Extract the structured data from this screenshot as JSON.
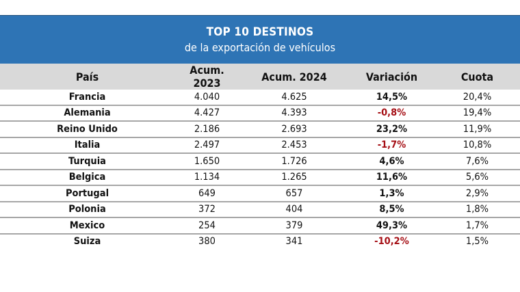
{
  "title": "TOP 10 DESTINOS",
  "subtitle": "de la exportación de vehículos",
  "colors": {
    "header_bg": "#2e74b5",
    "column_header_bg": "#d9d9d9",
    "negative": "#a50f15"
  },
  "chart_data": {
    "type": "table",
    "title": "TOP 10 DESTINOS",
    "subtitle": "de la exportación de vehículos",
    "columns": [
      "País",
      "Acum. 2023",
      "Acum. 2024",
      "Variación",
      "Cuota"
    ],
    "rows": [
      [
        "Francia",
        "4.040",
        "4.625",
        "14,5%",
        "20,4%"
      ],
      [
        "Alemania",
        "4.427",
        "4.393",
        "-0,8%",
        "19,4%"
      ],
      [
        "Reino Unido",
        "2.186",
        "2.693",
        "23,2%",
        "11,9%"
      ],
      [
        "Italia",
        "2.497",
        "2.453",
        "-1,7%",
        "10,8%"
      ],
      [
        "Turquia",
        "1.650",
        "1.726",
        "4,6%",
        "7,6%"
      ],
      [
        "Belgica",
        "1.134",
        "1.265",
        "11,6%",
        "5,6%"
      ],
      [
        "Portugal",
        "649",
        "657",
        "1,3%",
        "2,9%"
      ],
      [
        "Polonia",
        "372",
        "404",
        "8,5%",
        "1,8%"
      ],
      [
        "Mexico",
        "254",
        "379",
        "49,3%",
        "1,7%"
      ],
      [
        "Suiza",
        "380",
        "341",
        "-10,2%",
        "1,5%"
      ]
    ]
  }
}
